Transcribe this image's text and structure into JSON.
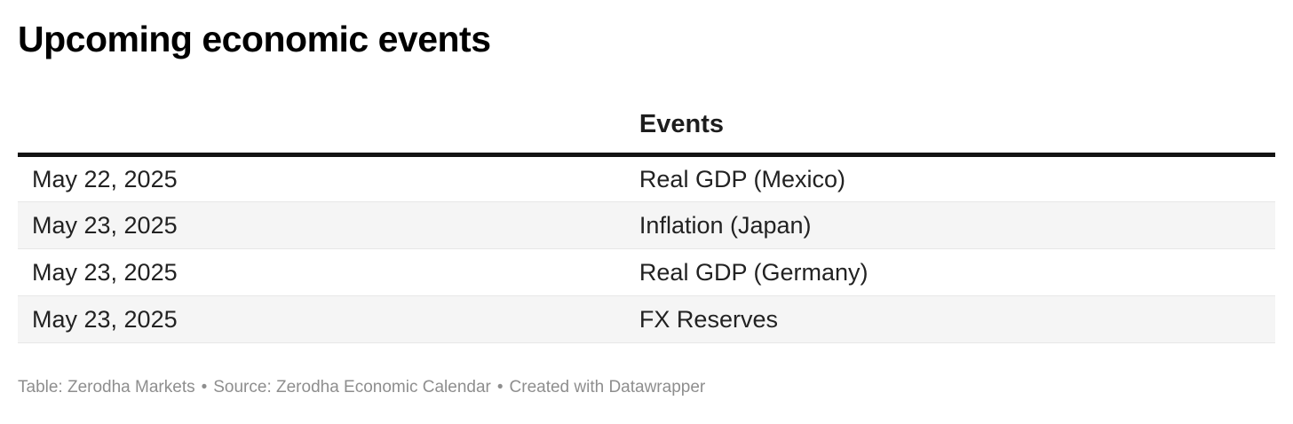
{
  "title": "Upcoming economic events",
  "chart_data": {
    "type": "table",
    "title": "Upcoming economic events",
    "columns": [
      "",
      "Events"
    ],
    "rows": [
      [
        "May 22, 2025",
        "Real GDP (Mexico)"
      ],
      [
        "May 23, 2025",
        "Inflation (Japan)"
      ],
      [
        "May 23, 2025",
        "Real GDP (Germany)"
      ],
      [
        "May 23, 2025",
        "FX Reserves"
      ]
    ],
    "layout_hints": {
      "striped_rows": true,
      "header_rule": "thick-black",
      "grid": "horizontal-only"
    }
  },
  "footer": {
    "table_credit": "Table: Zerodha Markets",
    "separator": "•",
    "source_credit": "Source: Zerodha Economic Calendar",
    "created_credit": "Created with Datawrapper"
  },
  "colors": {
    "background": "#ffffff",
    "title_text": "#000000",
    "header_text": "#1d1d1d",
    "body_text": "#222222",
    "stripe": "#f5f5f5",
    "row_divider": "#e7e7e7",
    "header_rule": "#131313",
    "footer_text": "#8e8e8e"
  }
}
